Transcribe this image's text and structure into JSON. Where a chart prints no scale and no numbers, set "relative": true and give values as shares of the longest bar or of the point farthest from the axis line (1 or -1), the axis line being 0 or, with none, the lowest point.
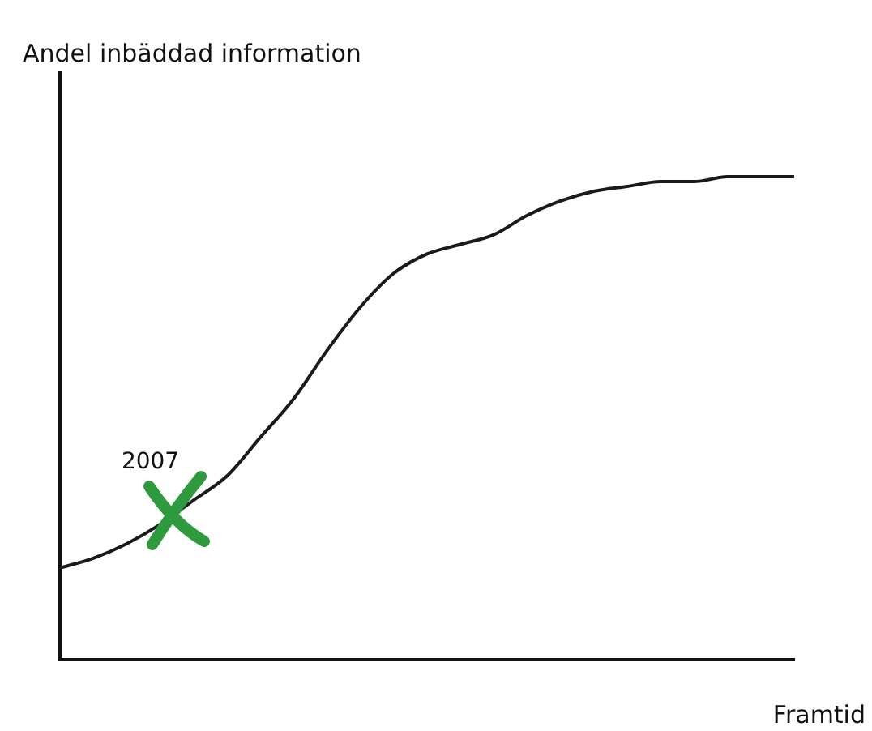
{
  "chart_data": {
    "type": "line",
    "relative": true,
    "xlabel": "Framtid",
    "ylabel": "Andel inbäddad information",
    "annotations": [
      "2007"
    ],
    "categories": [
      null,
      null,
      null,
      null,
      null,
      null,
      null,
      null,
      null,
      null,
      null,
      null,
      null,
      null,
      null,
      null,
      null,
      null,
      null,
      null,
      null,
      null,
      null
    ],
    "series": [
      {
        "color": "#1a1a1a",
        "values": [
          0.19,
          0.21,
          0.24,
          0.28,
          0.33,
          0.38,
          0.46,
          0.54,
          0.64,
          0.73,
          0.8,
          0.84,
          0.86,
          0.88,
          0.92,
          0.95,
          0.97,
          0.98,
          0.99,
          0.99,
          1.0,
          1.0,
          1.0
        ]
      }
    ],
    "marker": "none",
    "grid": false,
    "legend": false
  }
}
